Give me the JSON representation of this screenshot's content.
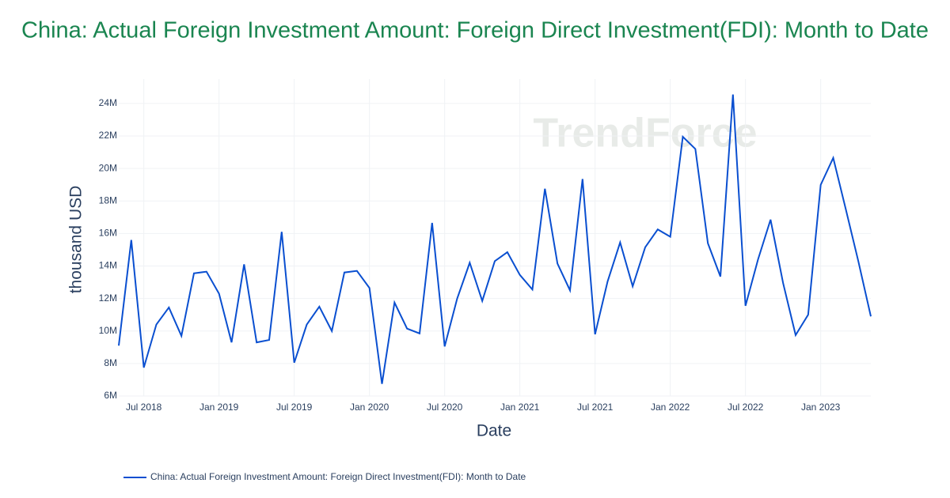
{
  "chart_data": {
    "type": "line",
    "title": "China: Actual Foreign Investment Amount: Foreign Direct Investment(FDI): Month to Date",
    "x_label": "Date",
    "y_label": "thousand USD",
    "watermark": "TrendForce",
    "x": [
      "2018-05",
      "2018-06",
      "2018-07",
      "2018-08",
      "2018-09",
      "2018-10",
      "2018-11",
      "2018-12",
      "2019-01",
      "2019-02",
      "2019-03",
      "2019-04",
      "2019-05",
      "2019-06",
      "2019-07",
      "2019-08",
      "2019-09",
      "2019-10",
      "2019-11",
      "2019-12",
      "2020-01",
      "2020-02",
      "2020-03",
      "2020-04",
      "2020-05",
      "2020-06",
      "2020-07",
      "2020-08",
      "2020-09",
      "2020-10",
      "2020-11",
      "2020-12",
      "2021-01",
      "2021-02",
      "2021-03",
      "2021-04",
      "2021-05",
      "2021-06",
      "2021-07",
      "2021-08",
      "2021-09",
      "2021-10",
      "2021-11",
      "2021-12",
      "2022-01",
      "2022-02",
      "2022-03",
      "2022-04",
      "2022-05",
      "2022-06",
      "2022-07",
      "2022-08",
      "2022-09",
      "2022-10",
      "2022-11",
      "2022-12",
      "2023-01",
      "2023-02",
      "2023-03",
      "2023-04",
      "2023-05"
    ],
    "series": [
      {
        "name": "China: Actual Foreign Investment Amount: Foreign Direct Investment(FDI): Month to Date",
        "color": "#0a4fd0",
        "values": [
          9100000,
          15600000,
          7750000,
          10400000,
          11450000,
          9700000,
          13550000,
          13650000,
          12300000,
          9300000,
          14100000,
          9300000,
          9450000,
          16100000,
          8050000,
          10400000,
          11500000,
          10000000,
          13600000,
          13700000,
          12650000,
          6750000,
          11750000,
          10150000,
          9850000,
          16650000,
          9050000,
          12000000,
          14200000,
          11850000,
          14300000,
          14850000,
          13450000,
          12550000,
          18750000,
          14150000,
          12500000,
          19350000,
          9800000,
          13050000,
          15450000,
          12750000,
          15150000,
          16250000,
          15800000,
          21950000,
          21200000,
          15400000,
          13350000,
          24550000,
          11550000,
          14400000,
          16850000,
          12950000,
          9750000,
          11000000,
          18990000,
          20650000,
          17500000,
          14300000,
          10900000
        ]
      }
    ],
    "xlim": [
      "2018-05",
      "2023-05"
    ],
    "xticks": [
      {
        "value": "2018-07",
        "label": "Jul 2018"
      },
      {
        "value": "2019-01",
        "label": "Jan 2019"
      },
      {
        "value": "2019-07",
        "label": "Jul 2019"
      },
      {
        "value": "2020-01",
        "label": "Jan 2020"
      },
      {
        "value": "2020-07",
        "label": "Jul 2020"
      },
      {
        "value": "2021-01",
        "label": "Jan 2021"
      },
      {
        "value": "2021-07",
        "label": "Jul 2021"
      },
      {
        "value": "2022-01",
        "label": "Jan 2022"
      },
      {
        "value": "2022-07",
        "label": "Jul 2022"
      },
      {
        "value": "2023-01",
        "label": "Jan 2023"
      }
    ],
    "ylim": [
      6000000,
      25500000
    ],
    "yticks": [
      {
        "value": 6000000,
        "label": "6M"
      },
      {
        "value": 8000000,
        "label": "8M"
      },
      {
        "value": 10000000,
        "label": "10M"
      },
      {
        "value": 12000000,
        "label": "12M"
      },
      {
        "value": 14000000,
        "label": "14M"
      },
      {
        "value": 16000000,
        "label": "16M"
      },
      {
        "value": 18000000,
        "label": "18M"
      },
      {
        "value": 20000000,
        "label": "20M"
      },
      {
        "value": 22000000,
        "label": "22M"
      },
      {
        "value": 24000000,
        "label": "24M"
      }
    ],
    "grid": true,
    "legend": "bottom"
  }
}
